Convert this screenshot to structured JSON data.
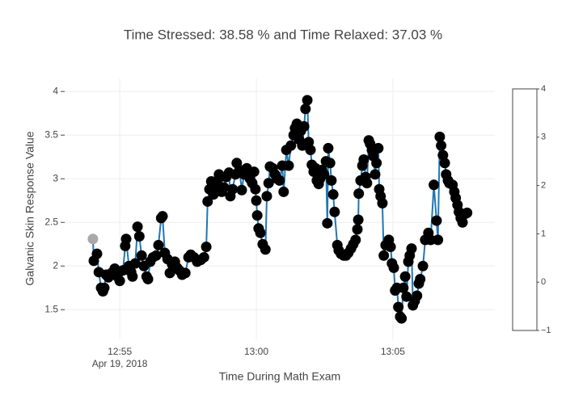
{
  "chart_data": {
    "type": "line",
    "title": "Time Stressed: 38.58 % and Time Relaxed: 37.03 %",
    "xlabel": "Time During Math Exam",
    "ylabel": "Galvanic Skin Response Value",
    "x_date_label": "Apr 19, 2018",
    "xlim": [
      "2018-04-19 12:52:59",
      "2018-04-19 13:08:44"
    ],
    "xticks": [
      {
        "value": "2018-04-19 12:55:00",
        "label": "12:55"
      },
      {
        "value": "2018-04-19 13:00:00",
        "label": "13:00"
      },
      {
        "value": "2018-04-19 13:05:00",
        "label": "13:05"
      }
    ],
    "ylim": [
      1.16,
      4.15
    ],
    "yticks": [
      {
        "value": 1.5,
        "label": "1.5"
      },
      2,
      {
        "value": 2.5,
        "label": "2.5"
      },
      3,
      {
        "value": 3.5,
        "label": "3.5"
      },
      4
    ],
    "grid": true,
    "colorbar": {
      "range": [
        -1,
        4
      ],
      "ticks": [
        {
          "value": -1,
          "label": "−1"
        },
        0,
        1,
        2,
        3,
        4
      ]
    },
    "x": [
      "2018-04-19 12:54:01",
      "2018-04-19 12:54:03",
      "2018-04-19 12:54:10",
      "2018-04-19 12:54:14",
      "2018-04-19 12:54:19",
      "2018-04-19 12:54:23",
      "2018-04-19 12:54:26",
      "2018-04-19 12:54:30",
      "2018-04-19 12:54:35",
      "2018-04-19 12:54:42",
      "2018-04-19 12:54:49",
      "2018-04-19 12:54:55",
      "2018-04-19 12:55:00",
      "2018-04-19 12:55:07",
      "2018-04-19 12:55:12",
      "2018-04-19 12:55:14",
      "2018-04-19 12:55:20",
      "2018-04-19 12:55:25",
      "2018-04-19 12:55:28",
      "2018-04-19 12:55:34",
      "2018-04-19 12:55:39",
      "2018-04-19 12:55:43",
      "2018-04-19 12:55:48",
      "2018-04-19 12:55:53",
      "2018-04-19 12:55:59",
      "2018-04-19 12:56:02",
      "2018-04-19 12:56:07",
      "2018-04-19 12:56:13",
      "2018-04-19 12:56:20",
      "2018-04-19 12:56:25",
      "2018-04-19 12:56:31",
      "2018-04-19 12:56:34",
      "2018-04-19 12:56:39",
      "2018-04-19 12:56:45",
      "2018-04-19 12:56:50",
      "2018-04-19 12:56:55",
      "2018-04-19 12:57:01",
      "2018-04-19 12:57:06",
      "2018-04-19 12:57:11",
      "2018-04-19 12:57:17",
      "2018-04-19 12:57:24",
      "2018-04-19 12:57:31",
      "2018-04-19 12:57:36",
      "2018-04-19 12:57:43",
      "2018-04-19 12:57:50",
      "2018-04-19 12:57:58",
      "2018-04-19 12:58:05",
      "2018-04-19 12:58:10",
      "2018-04-19 12:58:13",
      "2018-04-19 12:58:17",
      "2018-04-19 12:58:21",
      "2018-04-19 12:58:26",
      "2018-04-19 12:58:31",
      "2018-04-19 12:58:35",
      "2018-04-19 12:58:38",
      "2018-04-19 12:58:44",
      "2018-04-19 12:58:49",
      "2018-04-19 12:58:54",
      "2018-04-19 12:59:00",
      "2018-04-19 12:59:03",
      "2018-04-19 12:59:08",
      "2018-04-19 12:59:14",
      "2018-04-19 12:59:17",
      "2018-04-19 12:59:23",
      "2018-04-19 12:59:28",
      "2018-04-19 12:59:33",
      "2018-04-19 12:59:39",
      "2018-04-19 12:59:46",
      "2018-04-19 12:59:51",
      "2018-04-19 12:59:55",
      "2018-04-19 12:59:58",
      "2018-04-19 13:00:00",
      "2018-04-19 13:00:02",
      "2018-04-19 13:00:05",
      "2018-04-19 13:00:09",
      "2018-04-19 13:00:14",
      "2018-04-19 13:00:20",
      "2018-04-19 13:00:23",
      "2018-04-19 13:00:27",
      "2018-04-19 13:00:30",
      "2018-04-19 13:00:36",
      "2018-04-19 13:00:41",
      "2018-04-19 13:00:46",
      "2018-04-19 13:00:51",
      "2018-04-19 13:00:57",
      "2018-04-19 13:01:00",
      "2018-04-19 13:01:06",
      "2018-04-19 13:01:11",
      "2018-04-19 13:01:16",
      "2018-04-19 13:01:22",
      "2018-04-19 13:01:25",
      "2018-04-19 13:01:29",
      "2018-04-19 13:01:34",
      "2018-04-19 13:01:38",
      "2018-04-19 13:01:41",
      "2018-04-19 13:01:45",
      "2018-04-19 13:01:48",
      "2018-04-19 13:01:52",
      "2018-04-19 13:01:55",
      "2018-04-19 13:01:59",
      "2018-04-19 13:02:02",
      "2018-04-19 13:02:06",
      "2018-04-19 13:02:10",
      "2018-04-19 13:02:13",
      "2018-04-19 13:02:17",
      "2018-04-19 13:02:20",
      "2018-04-19 13:02:24",
      "2018-04-19 13:02:29",
      "2018-04-19 13:02:33",
      "2018-04-19 13:02:36",
      "2018-04-19 13:02:38",
      "2018-04-19 13:02:42",
      "2018-04-19 13:02:45",
      "2018-04-19 13:02:49",
      "2018-04-19 13:02:52",
      "2018-04-19 13:02:58",
      "2018-04-19 13:03:01",
      "2018-04-19 13:03:06",
      "2018-04-19 13:03:12",
      "2018-04-19 13:03:17",
      "2018-04-19 13:03:22",
      "2018-04-19 13:03:28",
      "2018-04-19 13:03:33",
      "2018-04-19 13:03:38",
      "2018-04-19 13:03:42",
      "2018-04-19 13:03:44",
      "2018-04-19 13:03:45",
      "2018-04-19 13:03:49",
      "2018-04-19 13:03:53",
      "2018-04-19 13:03:56",
      "2018-04-19 13:04:00",
      "2018-04-19 13:04:03",
      "2018-04-19 13:04:07",
      "2018-04-19 13:04:10",
      "2018-04-19 13:04:14",
      "2018-04-19 13:04:17",
      "2018-04-19 13:04:21",
      "2018-04-19 13:04:24",
      "2018-04-19 13:04:28",
      "2018-04-19 13:04:30",
      "2018-04-19 13:04:33",
      "2018-04-19 13:04:37",
      "2018-04-19 13:04:40",
      "2018-04-19 13:04:44",
      "2018-04-19 13:04:48",
      "2018-04-19 13:04:51",
      "2018-04-19 13:04:55",
      "2018-04-19 13:04:58",
      "2018-04-19 13:05:02",
      "2018-04-19 13:05:05",
      "2018-04-19 13:05:09",
      "2018-04-19 13:05:12",
      "2018-04-19 13:05:16",
      "2018-04-19 13:05:19",
      "2018-04-19 13:05:23",
      "2018-04-19 13:05:27",
      "2018-04-19 13:05:30",
      "2018-04-19 13:05:34",
      "2018-04-19 13:05:37",
      "2018-04-19 13:05:41",
      "2018-04-19 13:05:44",
      "2018-04-19 13:05:48",
      "2018-04-19 13:05:53",
      "2018-04-19 13:05:57",
      "2018-04-19 13:06:00",
      "2018-04-19 13:06:06",
      "2018-04-19 13:06:11",
      "2018-04-19 13:06:18",
      "2018-04-19 13:06:23",
      "2018-04-19 13:06:30",
      "2018-04-19 13:06:36",
      "2018-04-19 13:06:39",
      "2018-04-19 13:06:43",
      "2018-04-19 13:06:46",
      "2018-04-19 13:06:50",
      "2018-04-19 13:06:54",
      "2018-04-19 13:06:57",
      "2018-04-19 13:07:01",
      "2018-04-19 13:07:04",
      "2018-04-19 13:07:11",
      "2018-04-19 13:07:15",
      "2018-04-19 13:07:18",
      "2018-04-19 13:07:22",
      "2018-04-19 13:07:25",
      "2018-04-19 13:07:29",
      "2018-04-19 13:07:33",
      "2018-04-19 13:07:40",
      "2018-04-19 13:07:43"
    ],
    "series": [
      {
        "line_color": "#1f77b4",
        "marker_color": "#000000",
        "first_marker_color": "#a9a9a9",
        "values": [
          2.31,
          2.06,
          2.14,
          1.93,
          1.75,
          1.71,
          1.75,
          1.9,
          1.87,
          1.92,
          1.97,
          1.88,
          1.83,
          1.95,
          2.23,
          2.31,
          2.0,
          1.93,
          1.88,
          2.03,
          2.45,
          2.34,
          2.12,
          2.0,
          1.88,
          1.85,
          2.05,
          2.1,
          2.12,
          2.24,
          2.55,
          2.57,
          2.15,
          2.08,
          1.92,
          2.02,
          2.05,
          1.98,
          1.95,
          1.9,
          1.92,
          2.1,
          2.13,
          2.1,
          2.05,
          2.07,
          2.1,
          2.22,
          2.74,
          2.88,
          2.97,
          2.82,
          2.88,
          2.98,
          3.05,
          2.85,
          2.9,
          3.02,
          3.07,
          2.8,
          2.88,
          3.05,
          3.18,
          3.1,
          2.87,
          3.05,
          3.12,
          3.0,
          2.95,
          3.08,
          2.88,
          2.75,
          2.58,
          2.43,
          2.38,
          2.25,
          2.19,
          2.8,
          2.95,
          3.14,
          3.12,
          3.05,
          3.0,
          2.98,
          3.15,
          2.85,
          3.33,
          3.15,
          3.38,
          3.5,
          3.58,
          3.63,
          3.45,
          3.55,
          3.38,
          3.6,
          3.8,
          3.9,
          3.42,
          3.33,
          3.16,
          3.08,
          3.12,
          2.98,
          2.94,
          3.0,
          3.1,
          3.05,
          3.2,
          2.49,
          3.35,
          3.18,
          2.98,
          2.82,
          2.62,
          2.24,
          2.18,
          2.14,
          2.12,
          2.12,
          2.15,
          2.2,
          2.25,
          2.3,
          2.42,
          2.53,
          2.83,
          2.98,
          3.15,
          3.22,
          3.02,
          2.95,
          3.44,
          3.4,
          3.33,
          3.26,
          3.05,
          3.18,
          3.35,
          2.88,
          2.8,
          2.72,
          2.12,
          2.24,
          2.25,
          2.3,
          2.22,
          2.03,
          1.98,
          1.72,
          1.75,
          1.53,
          1.42,
          1.4,
          1.75,
          1.88,
          1.65,
          2.05,
          2.12,
          2.2,
          1.55,
          1.6,
          1.66,
          1.8,
          1.85,
          2.0,
          2.3,
          2.38,
          2.3,
          2.93,
          2.52,
          2.3,
          3.48,
          3.38,
          3.27,
          3.18,
          3.05,
          2.98,
          2.95,
          2.93,
          2.85,
          2.78,
          2.7,
          2.62,
          2.55,
          2.5,
          2.6,
          2.61
        ]
      }
    ]
  }
}
